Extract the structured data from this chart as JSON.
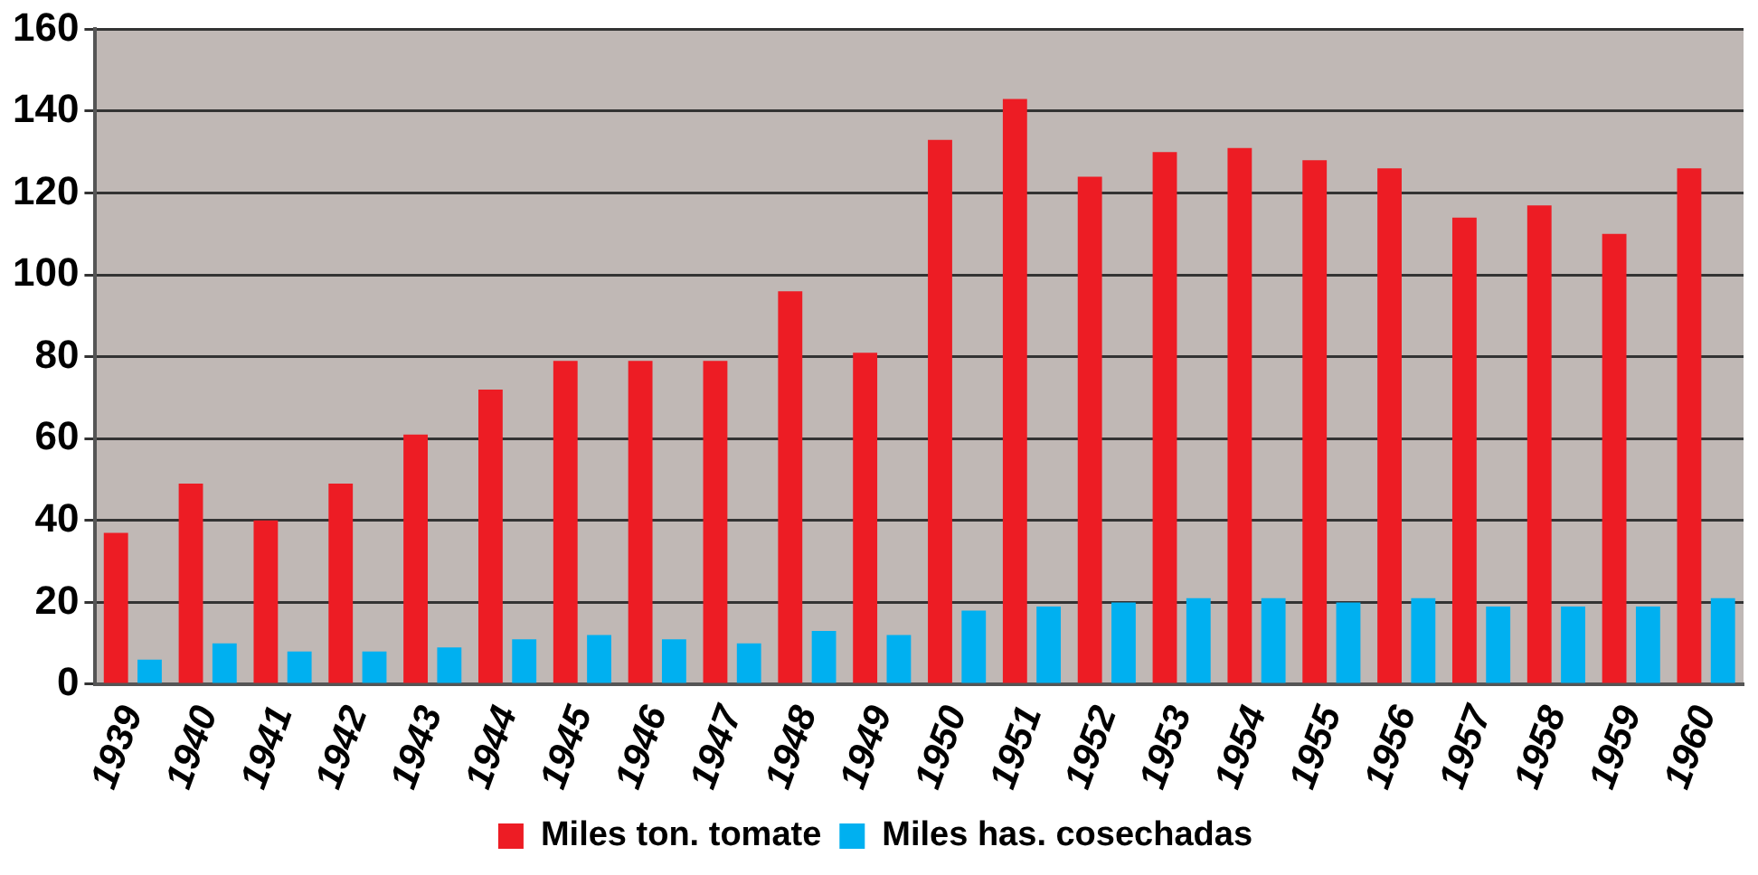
{
  "chart_data": {
    "type": "bar",
    "categories": [
      "1939",
      "1940",
      "1941",
      "1942",
      "1943",
      "1944",
      "1945",
      "1946",
      "1947",
      "1948",
      "1949",
      "1950",
      "1951",
      "1952",
      "1953",
      "1954",
      "1955",
      "1956",
      "1957",
      "1958",
      "1959",
      "1960"
    ],
    "series": [
      {
        "name": "Miles ton. tomate",
        "color": "#ed1c24",
        "values": [
          37,
          49,
          40,
          49,
          61,
          72,
          79,
          79,
          79,
          96,
          81,
          133,
          143,
          124,
          130,
          131,
          128,
          126,
          114,
          117,
          110,
          126
        ]
      },
      {
        "name": "Miles has. cosechadas",
        "color": "#00b0f0",
        "values": [
          6,
          10,
          8,
          8,
          9,
          11,
          12,
          11,
          10,
          13,
          12,
          18,
          19,
          20,
          21,
          21,
          20,
          21,
          19,
          19,
          19,
          21
        ]
      }
    ],
    "ylim": [
      0,
      160
    ],
    "yticks": [
      0,
      20,
      40,
      60,
      80,
      100,
      120,
      140,
      160
    ],
    "grid": "y",
    "legend": "bottom"
  }
}
